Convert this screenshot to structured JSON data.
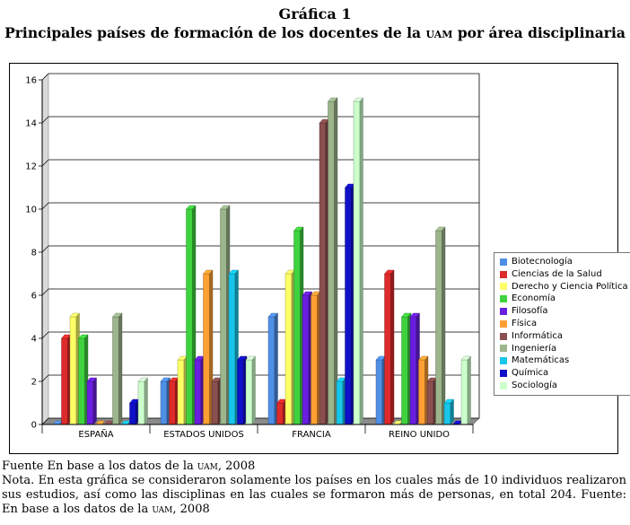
{
  "header": {
    "label": "Gráfica 1",
    "title_pre": "Principales países de formación de los docentes de la ",
    "title_abbr": "uam",
    "title_post": " por área disciplinaria"
  },
  "chart_data": {
    "type": "bar",
    "title": "",
    "xlabel": "",
    "ylabel": "",
    "ylim": [
      0,
      16
    ],
    "yticks": [
      0,
      2,
      4,
      6,
      8,
      10,
      12,
      14,
      16
    ],
    "grid": true,
    "legend_position": "right",
    "categories": [
      "ESPAÑA",
      "ESTADOS UNIDOS",
      "FRANCIA",
      "REINO UNIDO"
    ],
    "series": [
      {
        "name": "Biotecnología",
        "color": "#4f8fe6",
        "values": [
          0,
          2,
          5,
          3
        ]
      },
      {
        "name": "Ciencias de la Salud",
        "color": "#dd2a2a",
        "values": [
          4,
          2,
          1,
          7
        ]
      },
      {
        "name": "Derecho y Ciencia Política",
        "color": "#ffff66",
        "values": [
          5,
          3,
          7,
          0
        ]
      },
      {
        "name": "Economía",
        "color": "#3fd23f",
        "values": [
          4,
          10,
          9,
          5
        ]
      },
      {
        "name": "Filosofía",
        "color": "#6a1ee0",
        "values": [
          2,
          3,
          6,
          5
        ]
      },
      {
        "name": "Física",
        "color": "#ff9f33",
        "values": [
          0,
          7,
          6,
          3
        ]
      },
      {
        "name": "Informática",
        "color": "#8a4f4f",
        "values": [
          0,
          2,
          14,
          2
        ]
      },
      {
        "name": "Ingeniería",
        "color": "#9cb58c",
        "values": [
          5,
          10,
          15,
          9
        ]
      },
      {
        "name": "Matemáticas",
        "color": "#17c6ea",
        "values": [
          0,
          7,
          2,
          1
        ]
      },
      {
        "name": "Química",
        "color": "#1010c8",
        "values": [
          1,
          3,
          11,
          0
        ]
      },
      {
        "name": "Sociología",
        "color": "#ccffcc",
        "values": [
          2,
          3,
          15,
          3
        ]
      }
    ]
  },
  "footer": {
    "source_pre": "Fuente En base a los datos de la ",
    "source_abbr": "uam",
    "source_post": ", 2008",
    "note_pre": "Nota. En esta gráfica se consideraron solamente los países en los cuales más de 10 individuos realizaron sus estudios, así como las disciplinas en las cuales se formaron más de personas, en total 204. Fuente: En base a los datos de la ",
    "note_abbr": "uam",
    "note_post": ", 2008"
  }
}
